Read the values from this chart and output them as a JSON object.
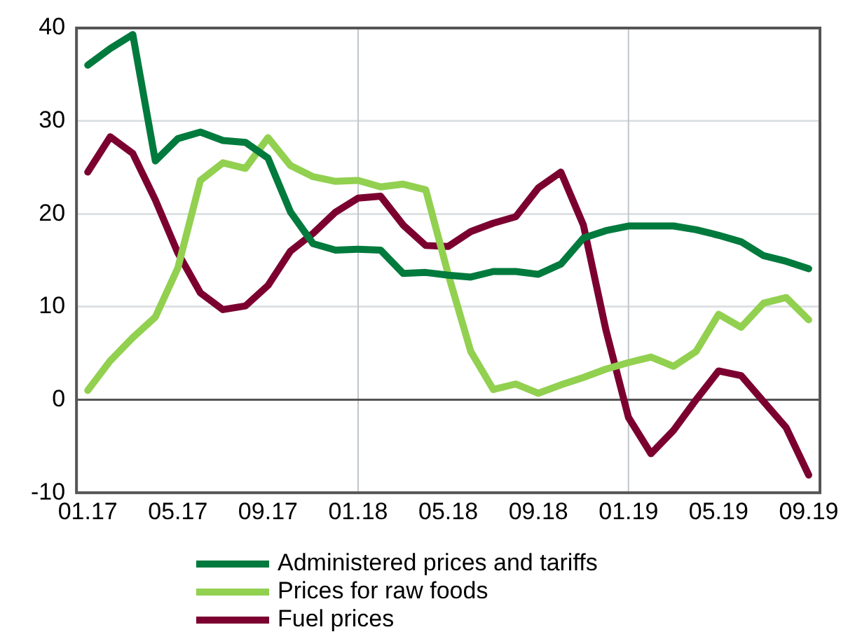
{
  "chart_data": {
    "type": "line",
    "categories": [
      "01.17",
      null,
      null,
      null,
      "05.17",
      null,
      null,
      null,
      "09.17",
      null,
      null,
      null,
      "01.18",
      null,
      null,
      null,
      "05.18",
      null,
      null,
      null,
      "09.18",
      null,
      null,
      null,
      "01.19",
      null,
      null,
      null,
      "05.19",
      null,
      null,
      null,
      "09.19"
    ],
    "series": [
      {
        "name": "Administered prices and tariffs",
        "color": "#007a3d",
        "values": [
          36,
          37.8,
          39.3,
          25.7,
          28.1,
          28.8,
          27.9,
          27.7,
          26,
          20.2,
          16.8,
          16.1,
          16.2,
          16.1,
          13.6,
          13.7,
          13.4,
          13.2,
          13.8,
          13.8,
          13.5,
          14.6,
          17.4,
          18.2,
          18.7,
          18.7,
          18.7,
          18.3,
          17.7,
          17,
          15.5,
          14.9,
          14.1
        ]
      },
      {
        "name": "Prices for raw foods",
        "color": "#92d050",
        "values": [
          1,
          4.2,
          6.7,
          8.9,
          14.2,
          23.6,
          25.5,
          24.9,
          28.2,
          25.2,
          24,
          23.5,
          23.6,
          22.9,
          23.2,
          22.6,
          13.5,
          5.2,
          1.1,
          1.7,
          0.7,
          1.6,
          2.4,
          3.3,
          4,
          4.6,
          3.6,
          5.2,
          9.2,
          7.8,
          10.4,
          11,
          8.6
        ]
      },
      {
        "name": "Fuel prices",
        "color": "#7b0030",
        "values": [
          24.5,
          28.3,
          26.5,
          21.5,
          15.8,
          11.5,
          9.7,
          10.1,
          12.3,
          16,
          17.9,
          20.2,
          21.7,
          21.9,
          18.8,
          16.6,
          16.5,
          18.1,
          19,
          19.7,
          22.8,
          24.5,
          18.8,
          7.5,
          -1.9,
          -5.8,
          -3.3,
          0,
          3.1,
          2.6,
          -0.2,
          -3,
          -8.1
        ]
      }
    ],
    "ylim": [
      -10,
      40
    ],
    "yticks": [
      -10,
      0,
      10,
      20,
      30,
      40
    ],
    "grid": "y",
    "ref_lines": [
      {
        "axis": "x",
        "value": "01.18",
        "color": "#c0c6cc"
      },
      {
        "axis": "x",
        "value": "01.19",
        "color": "#c0c6cc"
      }
    ],
    "legend": "bottom",
    "marker": "none",
    "line_style": "solid"
  }
}
